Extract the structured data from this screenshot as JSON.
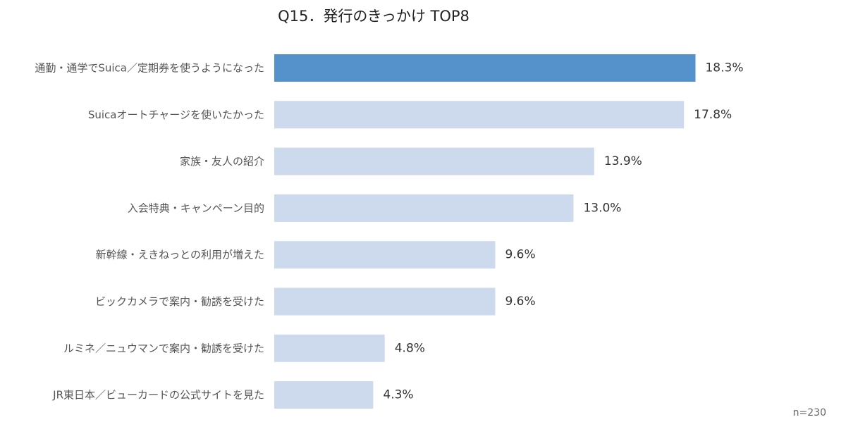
{
  "chart_data": {
    "type": "bar",
    "orientation": "horizontal",
    "title": "Q15．発行のきっかけ TOP8",
    "categories": [
      "通勤・通学でSuica／定期券を使うようになった",
      "Suicaオートチャージを使いたかった",
      "家族・友人の紹介",
      "入会特典・キャンペーン目的",
      "新幹線・えきねっとの利用が増えた",
      "ビックカメラで案内・勧誘を受けた",
      "ルミネ／ニュウマンで案内・勧誘を受けた",
      "JR東日本／ビューカードの公式サイトを見た"
    ],
    "values": [
      18.3,
      17.8,
      13.9,
      13.0,
      9.6,
      9.6,
      4.8,
      4.3
    ],
    "value_labels": [
      "18.3%",
      "17.8%",
      "13.9%",
      "13.0%",
      "9.6%",
      "9.6%",
      "4.8%",
      "4.3%"
    ],
    "xlim": [
      0,
      20
    ],
    "grid": false,
    "legend": "none",
    "note": "n=230",
    "colors": {
      "highlight": "#5591cb",
      "default": "#cdd9ec"
    },
    "highlight_index": 0
  }
}
